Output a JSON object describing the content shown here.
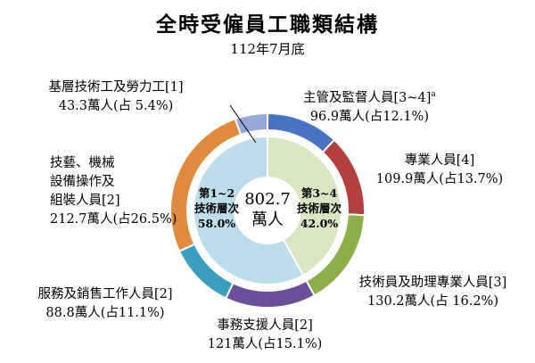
{
  "chart_data": {
    "type": "pie",
    "title": "全時受僱員工職類結構",
    "subtitle": "112年7月底",
    "center": {
      "value": "802.7",
      "unit": "萬人"
    },
    "slices": [
      {
        "label": "主管及監督人員[3~4]",
        "sup": "a",
        "value": 96.9,
        "value_text": "96.9萬人(占12.1%)",
        "pct": 12.1,
        "color": "#4a72c4"
      },
      {
        "label": "專業人員[4]",
        "sup": "",
        "value": 109.9,
        "value_text": "109.9萬人(占13.7%)",
        "pct": 13.7,
        "color": "#b2403e"
      },
      {
        "label": "技術員及助理專業人員[3]",
        "sup": "",
        "value": 130.2,
        "value_text": "130.2萬人(占 16.2%)",
        "pct": 16.2,
        "color": "#8bb04a"
      },
      {
        "label": "事務支援人員[2]",
        "sup": "",
        "value": 121,
        "value_text": "121萬人(占15.1%)",
        "pct": 15.1,
        "color": "#6a4f9a"
      },
      {
        "label": "服務及銷售工作人員[2]",
        "sup": "",
        "value": 88.8,
        "value_text": "88.8萬人(占11.1%)",
        "pct": 11.1,
        "color": "#3a9ec1"
      },
      {
        "label": "技藝、機械\n設備操作及\n組裝人員[2]",
        "sup": "",
        "value": 212.7,
        "value_text": "212.7萬人(占26.5%)",
        "pct": 26.5,
        "color": "#df8a3e"
      },
      {
        "label": "基層技術工及勞力工[1]",
        "sup": "",
        "value": 43.3,
        "value_text": "43.3萬人(占 5.4%)",
        "pct": 5.4,
        "color": "#98a8d6"
      }
    ],
    "inner": [
      {
        "label1": "第3~4",
        "label2": "技術層次",
        "pct_text": "42.0%",
        "pct": 42.0,
        "color": "#d8e6c4"
      },
      {
        "label1": "第1~2",
        "label2": "技術層次",
        "pct_text": "58.0%",
        "pct": 58.0,
        "color": "#bcdde9"
      }
    ]
  }
}
